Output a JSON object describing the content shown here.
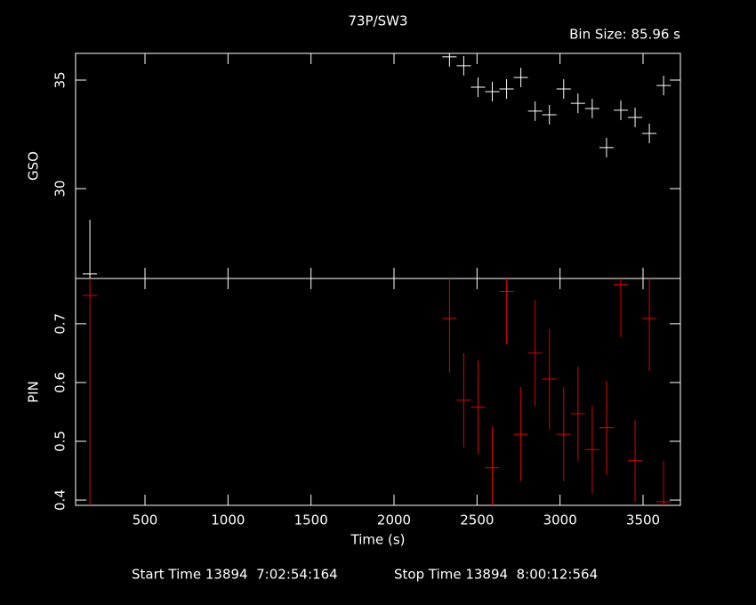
{
  "chart_data": {
    "type": "errorbar",
    "title": "73P/SW3",
    "subtitle": "Bin Size: 85.96 s",
    "xlabel": "Time (s)",
    "x": [
      168,
      2334,
      2420,
      2506,
      2592,
      2678,
      2764,
      2850,
      2936,
      3022,
      3108,
      3194,
      3280,
      3366,
      3452,
      3538,
      3624
    ],
    "xerr": 42.98,
    "xlim": [
      82,
      3725
    ],
    "xticks": [
      500,
      1000,
      1500,
      2000,
      2500,
      3000,
      3500
    ],
    "panels": [
      {
        "ylabel": "GSO",
        "color": "#ffffff",
        "ylim": [
          25.86,
          36.23
        ],
        "yticks": [
          30,
          35
        ],
        "values": [
          26.07,
          36.07,
          35.66,
          34.67,
          34.47,
          34.59,
          35.12,
          33.57,
          33.4,
          34.59,
          33.93,
          33.69,
          31.89,
          33.61,
          33.28,
          32.54,
          34.75
        ],
        "errors": [
          2.5,
          0.45,
          0.45,
          0.45,
          0.45,
          0.45,
          0.45,
          0.45,
          0.45,
          0.45,
          0.45,
          0.45,
          0.45,
          0.45,
          0.45,
          0.45,
          0.45
        ]
      },
      {
        "ylabel": "PIN",
        "color": "#e00000",
        "ylim": [
          0.391,
          0.777
        ],
        "yticks": [
          0.4,
          0.5,
          0.6,
          0.7
        ],
        "values": [
          0.748,
          0.709,
          0.57,
          0.558,
          0.455,
          0.755,
          0.512,
          0.65,
          0.606,
          0.512,
          0.547,
          0.486,
          0.523,
          0.767,
          0.467,
          0.709,
          0.397
        ],
        "errors": [
          0.39,
          0.092,
          0.08,
          0.08,
          0.07,
          0.09,
          0.08,
          0.09,
          0.085,
          0.08,
          0.08,
          0.075,
          0.08,
          0.09,
          0.07,
          0.09,
          0.07
        ]
      }
    ]
  },
  "footer": [
    "Start Time 13894  7:02:54:164",
    "Stop Time 13894  8:00:12:564"
  ]
}
